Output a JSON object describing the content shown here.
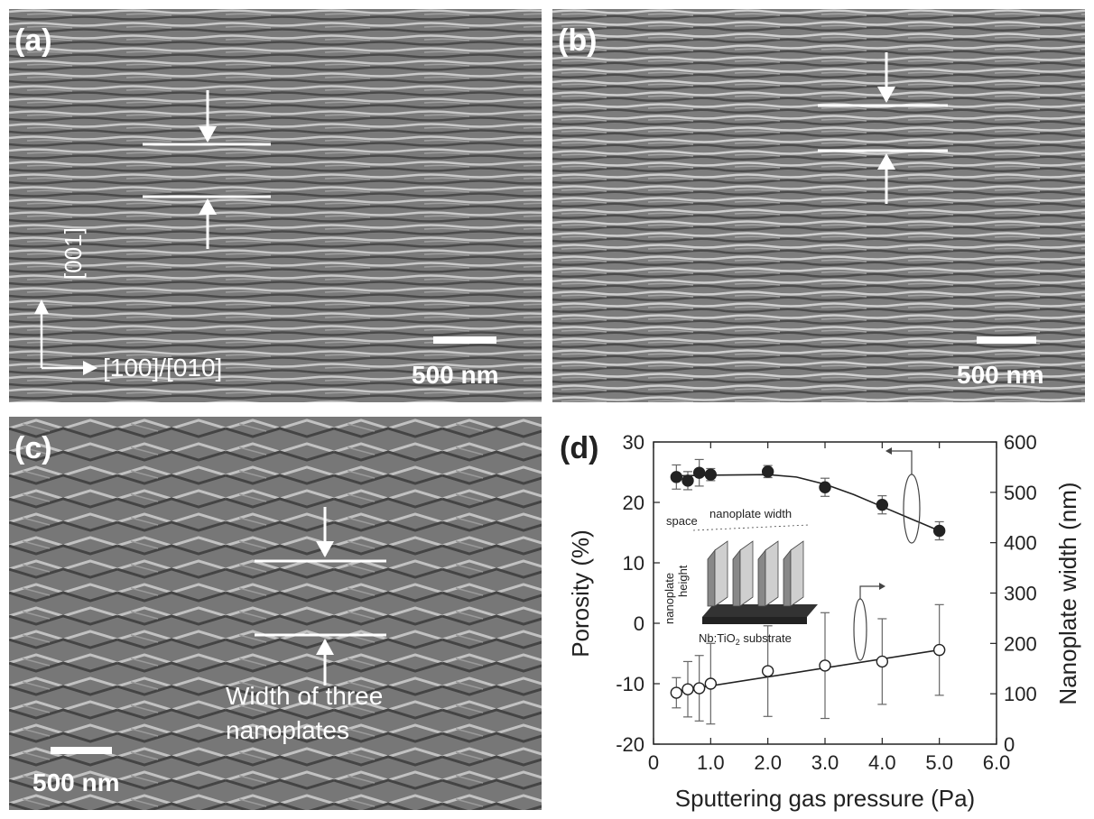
{
  "panels": {
    "a": {
      "label": "(a)",
      "scale": "500 nm",
      "axis_vertical": "[001]",
      "axis_horizontal": "[100]/[010]"
    },
    "b": {
      "label": "(b)",
      "scale": "500 nm"
    },
    "c": {
      "label": "(c)",
      "scale": "500 nm",
      "note_line1": "Width of three",
      "note_line2": "nanoplates"
    }
  },
  "chart_data": {
    "type": "scatter",
    "label": "(d)",
    "xlabel": "Sputtering gas pressure (Pa)",
    "ylabel_left": "Porosity (%)",
    "ylabel_right": "Nanoplate width (nm)",
    "xlim": [
      0,
      6
    ],
    "ylim_left": [
      -20,
      30
    ],
    "ylim_right": [
      0,
      600
    ],
    "x_ticks": [
      "0",
      "1.0",
      "2.0",
      "3.0",
      "4.0",
      "5.0",
      "6.0"
    ],
    "y_left_ticks": [
      "30",
      "20",
      "10",
      "0",
      "-10",
      "-20"
    ],
    "y_right_ticks": [
      "600",
      "500",
      "400",
      "300",
      "200",
      "100",
      "0"
    ],
    "grid": false,
    "series": [
      {
        "marker": "filled",
        "axis": "left",
        "x": [
          0.4,
          0.6,
          0.8,
          1.0,
          2.0,
          3.0,
          4.0,
          5.0
        ],
        "y": [
          24.2,
          23.6,
          24.9,
          24.6,
          25.1,
          22.5,
          19.6,
          15.3
        ],
        "err": [
          2.0,
          1.5,
          2.2,
          1.0,
          1.0,
          1.5,
          1.5,
          1.5
        ],
        "fit_x": [
          0.4,
          1.0,
          2.0,
          2.5,
          3.0,
          3.5,
          4.0,
          4.5,
          5.0
        ],
        "fit_y": [
          24.4,
          24.5,
          24.6,
          24.2,
          23.0,
          21.3,
          19.3,
          17.3,
          15.3
        ]
      },
      {
        "marker": "open",
        "axis": "right",
        "x": [
          0.4,
          0.6,
          0.8,
          1.0,
          2.0,
          3.0,
          4.0,
          5.0
        ],
        "y": [
          102,
          109,
          111,
          120,
          145,
          156,
          164,
          187
        ],
        "err": [
          30,
          55,
          65,
          80,
          90,
          105,
          85,
          90
        ],
        "fit_x": [
          0.4,
          5.0
        ],
        "fit_y": [
          105,
          187
        ]
      }
    ],
    "inset": {
      "space": "space",
      "width": "nanoplate width",
      "height_line1": "nanoplate",
      "height_line2": "height",
      "substrate_main": "Nb:TiO",
      "substrate_sub": "2",
      "substrate_rest": " substrate"
    }
  }
}
